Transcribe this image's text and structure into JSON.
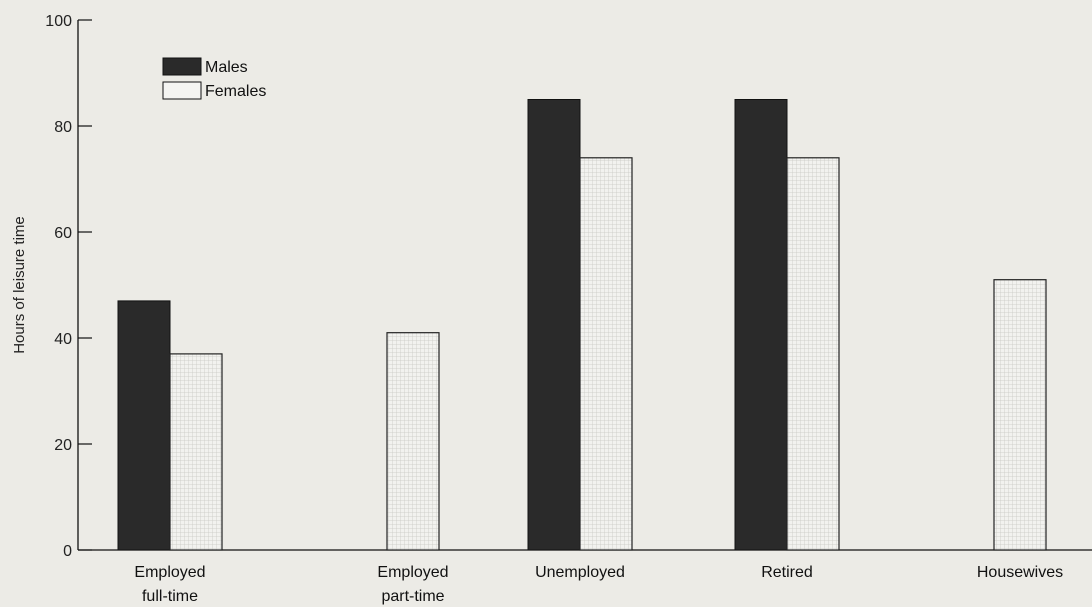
{
  "chart_data": {
    "type": "bar",
    "title": "",
    "xlabel": "",
    "ylabel": "Hours of leisure time",
    "ylim": [
      0,
      100
    ],
    "yticks": [
      0,
      20,
      40,
      60,
      80,
      100
    ],
    "grid": false,
    "legend_position": "top-left",
    "categories": [
      [
        "Employed",
        "full-time"
      ],
      [
        "Employed",
        "part-time"
      ],
      [
        "Unemployed"
      ],
      [
        "Retired"
      ],
      [
        "Housewives"
      ]
    ],
    "series": [
      {
        "name": "Males",
        "color": "#2a2a2a",
        "values": [
          47,
          null,
          85,
          85,
          null
        ]
      },
      {
        "name": "Females",
        "color": "#f4f4f2",
        "values": [
          37,
          41,
          74,
          74,
          51
        ]
      }
    ]
  }
}
